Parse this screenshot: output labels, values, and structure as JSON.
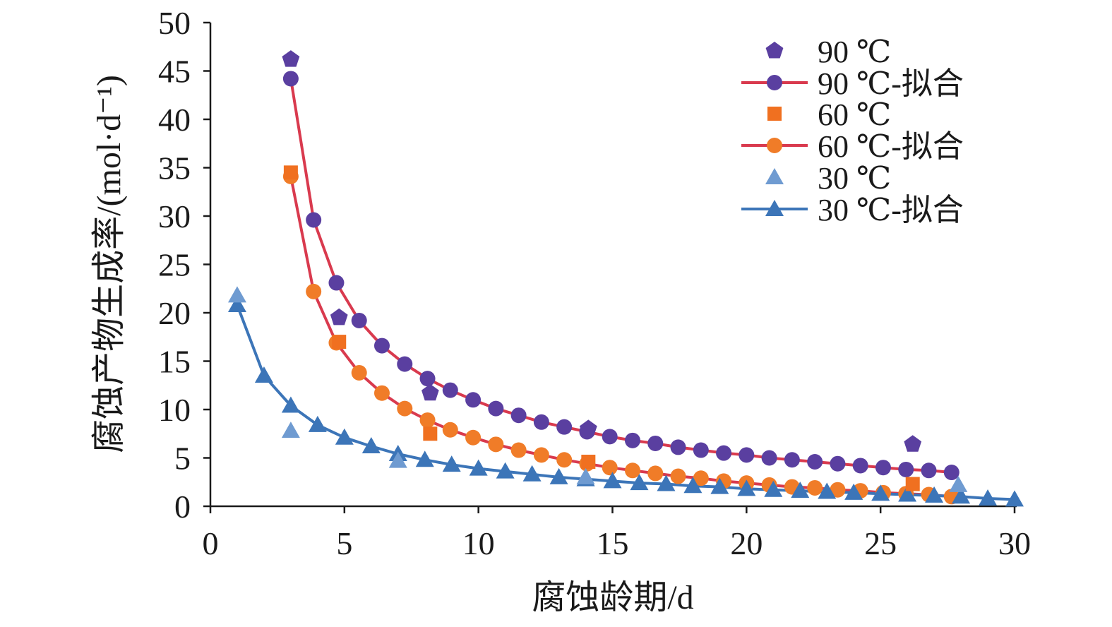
{
  "chart_data": {
    "type": "scatter",
    "xlabel": "腐蚀龄期/d",
    "ylabel": "腐蚀产物生成率/(mol·d⁻¹)",
    "xlim": [
      0,
      30
    ],
    "ylim": [
      0,
      50
    ],
    "x_ticks": [
      "0",
      "5",
      "10",
      "15",
      "20",
      "25",
      "30"
    ],
    "y_ticks": [
      "0",
      "5",
      "10",
      "15",
      "20",
      "25",
      "30",
      "35",
      "40",
      "45",
      "50"
    ],
    "grid": false,
    "legend_position": "top-right",
    "series": [
      {
        "name": "90 ℃",
        "kind": "observed",
        "marker": "pentagon",
        "color": "#5A3FA0",
        "points": [
          [
            3,
            46.2
          ],
          [
            4.8,
            19.5
          ],
          [
            8.2,
            11.7
          ],
          [
            14.1,
            8.0
          ],
          [
            26.2,
            6.4
          ]
        ]
      },
      {
        "name": "90 ℃-拟合",
        "kind": "fit",
        "marker": "circle",
        "color": "#5A3FA0",
        "line_color": "#D93A4E",
        "points": [
          [
            3,
            44.2
          ],
          [
            3.85,
            29.6
          ],
          [
            4.7,
            23.1
          ],
          [
            5.55,
            19.2
          ],
          [
            6.4,
            16.6
          ],
          [
            7.25,
            14.7
          ],
          [
            8.1,
            13.2
          ],
          [
            8.95,
            12.0
          ],
          [
            9.8,
            11.0
          ],
          [
            10.65,
            10.1
          ],
          [
            11.5,
            9.4
          ],
          [
            12.35,
            8.7
          ],
          [
            13.2,
            8.2
          ],
          [
            14.05,
            7.7
          ],
          [
            14.9,
            7.2
          ],
          [
            15.75,
            6.8
          ],
          [
            16.6,
            6.5
          ],
          [
            17.45,
            6.1
          ],
          [
            18.3,
            5.8
          ],
          [
            19.15,
            5.5
          ],
          [
            20.0,
            5.3
          ],
          [
            20.85,
            5.0
          ],
          [
            21.7,
            4.8
          ],
          [
            22.55,
            4.6
          ],
          [
            23.4,
            4.4
          ],
          [
            24.25,
            4.2
          ],
          [
            25.1,
            4.0
          ],
          [
            25.95,
            3.8
          ],
          [
            26.8,
            3.7
          ],
          [
            27.65,
            3.5
          ]
        ]
      },
      {
        "name": "60 ℃",
        "kind": "observed",
        "marker": "square",
        "color": "#F07020",
        "points": [
          [
            3,
            34.5
          ],
          [
            4.8,
            17.0
          ],
          [
            8.2,
            7.5
          ],
          [
            14.1,
            4.6
          ],
          [
            26.2,
            2.3
          ]
        ]
      },
      {
        "name": "60 ℃-拟合",
        "kind": "fit",
        "marker": "circle",
        "color": "#F07C28",
        "line_color": "#D93A4E",
        "points": [
          [
            3,
            34.1
          ],
          [
            3.85,
            22.2
          ],
          [
            4.7,
            16.9
          ],
          [
            5.55,
            13.8
          ],
          [
            6.4,
            11.7
          ],
          [
            7.25,
            10.1
          ],
          [
            8.1,
            8.9
          ],
          [
            8.95,
            7.9
          ],
          [
            9.8,
            7.1
          ],
          [
            10.65,
            6.4
          ],
          [
            11.5,
            5.8
          ],
          [
            12.35,
            5.3
          ],
          [
            13.2,
            4.8
          ],
          [
            14.05,
            4.4
          ],
          [
            14.9,
            4.0
          ],
          [
            15.75,
            3.7
          ],
          [
            16.6,
            3.4
          ],
          [
            17.45,
            3.1
          ],
          [
            18.3,
            2.9
          ],
          [
            19.15,
            2.6
          ],
          [
            20.0,
            2.4
          ],
          [
            20.85,
            2.2
          ],
          [
            21.7,
            2.0
          ],
          [
            22.55,
            1.9
          ],
          [
            23.4,
            1.7
          ],
          [
            24.25,
            1.6
          ],
          [
            25.1,
            1.4
          ],
          [
            25.95,
            1.3
          ],
          [
            26.8,
            1.2
          ],
          [
            27.65,
            1.0
          ]
        ]
      },
      {
        "name": "30 ℃",
        "kind": "observed",
        "marker": "triangle",
        "color": "#6F9BD1",
        "points": [
          [
            1,
            21.8
          ],
          [
            3,
            7.8
          ],
          [
            7,
            4.7
          ],
          [
            14,
            3.0
          ],
          [
            27.9,
            2.2
          ]
        ]
      },
      {
        "name": "30 ℃-拟合",
        "kind": "fit",
        "marker": "triangle",
        "color": "#3C75B8",
        "line_color": "#3C75B8",
        "points": [
          [
            1,
            20.8
          ],
          [
            2,
            13.5
          ],
          [
            3,
            10.4
          ],
          [
            4,
            8.4
          ],
          [
            5,
            7.1
          ],
          [
            6,
            6.2
          ],
          [
            7,
            5.4
          ],
          [
            8,
            4.8
          ],
          [
            9,
            4.3
          ],
          [
            10,
            3.9
          ],
          [
            11,
            3.6
          ],
          [
            12,
            3.3
          ],
          [
            13,
            3.0
          ],
          [
            14,
            2.8
          ],
          [
            15,
            2.6
          ],
          [
            16,
            2.4
          ],
          [
            17,
            2.3
          ],
          [
            18,
            2.1
          ],
          [
            19,
            2.0
          ],
          [
            20,
            1.8
          ],
          [
            21,
            1.7
          ],
          [
            22,
            1.6
          ],
          [
            23,
            1.5
          ],
          [
            24,
            1.4
          ],
          [
            25,
            1.3
          ],
          [
            26,
            1.2
          ],
          [
            27,
            1.1
          ],
          [
            28,
            1.0
          ],
          [
            29,
            0.8
          ],
          [
            30,
            0.7
          ]
        ]
      }
    ]
  }
}
